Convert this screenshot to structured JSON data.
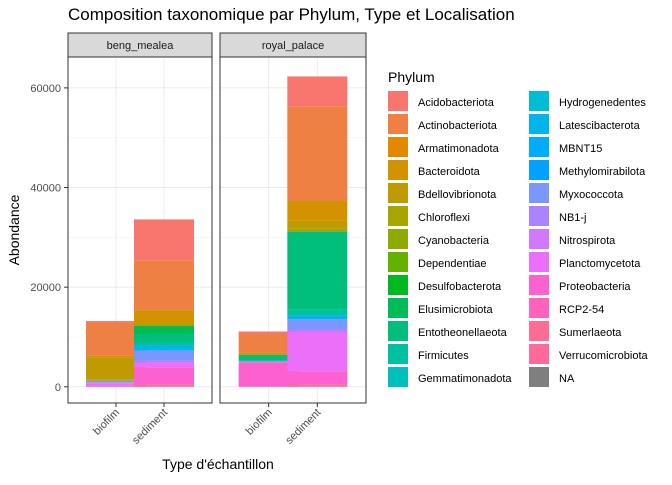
{
  "chart_data": {
    "type": "bar",
    "title": "Composition taxonomique par Phylum, Type et Localisation",
    "xlabel": "Type d'échantillon",
    "ylabel": "Abondance",
    "ylim": [
      0,
      65000
    ],
    "y_ticks": [
      0,
      20000,
      40000,
      60000
    ],
    "y_tick_labels": [
      "0",
      "20000",
      "40000",
      "60000"
    ],
    "grid": true,
    "stacked": true,
    "legend_title": "Phylum",
    "legend_position": "right",
    "facets": [
      "beng_mealea",
      "royal_palace"
    ],
    "categories": [
      "biofilm",
      "sediment"
    ],
    "phyla": [
      {
        "name": "Acidobacteriota",
        "color": "#F8766D"
      },
      {
        "name": "Actinobacteriota",
        "color": "#EE8043"
      },
      {
        "name": "Armatimonadota",
        "color": "#E38900"
      },
      {
        "name": "Bacteroidota",
        "color": "#D39200"
      },
      {
        "name": "Bdellovibrionota",
        "color": "#C09B00"
      },
      {
        "name": "Chloroflexi",
        "color": "#A9A400"
      },
      {
        "name": "Cyanobacteria",
        "color": "#8DAB00"
      },
      {
        "name": "Dependentiae",
        "color": "#64B200"
      },
      {
        "name": "Desulfobacterota",
        "color": "#00B81F"
      },
      {
        "name": "Elusimicrobiota",
        "color": "#00BC56"
      },
      {
        "name": "Entotheonellaeota",
        "color": "#00BF7D"
      },
      {
        "name": "Firmicutes",
        "color": "#00C19F"
      },
      {
        "name": "Gemmatimonadota",
        "color": "#00C0BB"
      },
      {
        "name": "Hydrogenedentes",
        "color": "#00BCD4"
      },
      {
        "name": "Latescibacterota",
        "color": "#00B5E9"
      },
      {
        "name": "MBNT15",
        "color": "#00ADFA"
      },
      {
        "name": "Methylomirabilota",
        "color": "#00A2FF"
      },
      {
        "name": "Myxococcota",
        "color": "#7997FF"
      },
      {
        "name": "NB1-j",
        "color": "#AB82FF"
      },
      {
        "name": "Nitrospirota",
        "color": "#D078FF"
      },
      {
        "name": "Planctomycetota",
        "color": "#EB6FF8"
      },
      {
        "name": "Proteobacteria",
        "color": "#FD61D1"
      },
      {
        "name": "RCP2-54",
        "color": "#FF62BC"
      },
      {
        "name": "Sumerlaeota",
        "color": "#FF6C91"
      },
      {
        "name": "Verrucomicrobiota",
        "color": "#FF6A98"
      },
      {
        "name": "NA",
        "color": "#7F7F7F"
      }
    ],
    "bars": [
      {
        "facet": "beng_mealea",
        "category": "biofilm",
        "segments": [
          {
            "phylum": "Acidobacteriota",
            "value": 300
          },
          {
            "phylum": "Actinobacteriota",
            "value": 6700
          },
          {
            "phylum": "Bacteroidota",
            "value": 300
          },
          {
            "phylum": "Bdellovibrionota",
            "value": 4400
          },
          {
            "phylum": "Chloroflexi",
            "value": 300
          },
          {
            "phylum": "Myxococcota",
            "value": 300
          },
          {
            "phylum": "Nitrospirota",
            "value": 300
          },
          {
            "phylum": "Planctomycetota",
            "value": 300
          },
          {
            "phylum": "Proteobacteria",
            "value": 300
          }
        ]
      },
      {
        "facet": "beng_mealea",
        "category": "sediment",
        "segments": [
          {
            "phylum": "Acidobacteriota",
            "value": 8200
          },
          {
            "phylum": "Actinobacteriota",
            "value": 10000
          },
          {
            "phylum": "Bacteroidota",
            "value": 2700
          },
          {
            "phylum": "Chloroflexi",
            "value": 500
          },
          {
            "phylum": "Elusimicrobiota",
            "value": 1600
          },
          {
            "phylum": "Entotheonellaeota",
            "value": 1700
          },
          {
            "phylum": "Firmicutes",
            "value": 600
          },
          {
            "phylum": "Latescibacterota",
            "value": 1000
          },
          {
            "phylum": "Myxococcota",
            "value": 2000
          },
          {
            "phylum": "NB1-j",
            "value": 400
          },
          {
            "phylum": "Planctomycetota",
            "value": 1000
          },
          {
            "phylum": "Proteobacteria",
            "value": 3400
          },
          {
            "phylum": "Verrucomicrobiota",
            "value": 500
          }
        ]
      },
      {
        "facet": "royal_palace",
        "category": "biofilm",
        "segments": [
          {
            "phylum": "Acidobacteriota",
            "value": 500
          },
          {
            "phylum": "Actinobacteriota",
            "value": 3800
          },
          {
            "phylum": "Bacteroidota",
            "value": 400
          },
          {
            "phylum": "Entotheonellaeota",
            "value": 1100
          },
          {
            "phylum": "Firmicutes",
            "value": 200
          },
          {
            "phylum": "Planctomycetota",
            "value": 200
          },
          {
            "phylum": "Proteobacteria",
            "value": 4900
          }
        ]
      },
      {
        "facet": "royal_palace",
        "category": "sediment",
        "segments": [
          {
            "phylum": "Acidobacteriota",
            "value": 6000
          },
          {
            "phylum": "Actinobacteriota",
            "value": 19000
          },
          {
            "phylum": "Bacteroidota",
            "value": 4000
          },
          {
            "phylum": "Bdellovibrionota",
            "value": 1500
          },
          {
            "phylum": "Chloroflexi",
            "value": 600
          },
          {
            "phylum": "Entotheonellaeota",
            "value": 15700
          },
          {
            "phylum": "Firmicutes",
            "value": 1200
          },
          {
            "phylum": "Latescibacterota",
            "value": 700
          },
          {
            "phylum": "Myxococcota",
            "value": 2000
          },
          {
            "phylum": "NB1-j",
            "value": 500
          },
          {
            "phylum": "Planctomycetota",
            "value": 8000
          },
          {
            "phylum": "Proteobacteria",
            "value": 2600
          },
          {
            "phylum": "Verrucomicrobiota",
            "value": 500
          }
        ]
      }
    ]
  }
}
